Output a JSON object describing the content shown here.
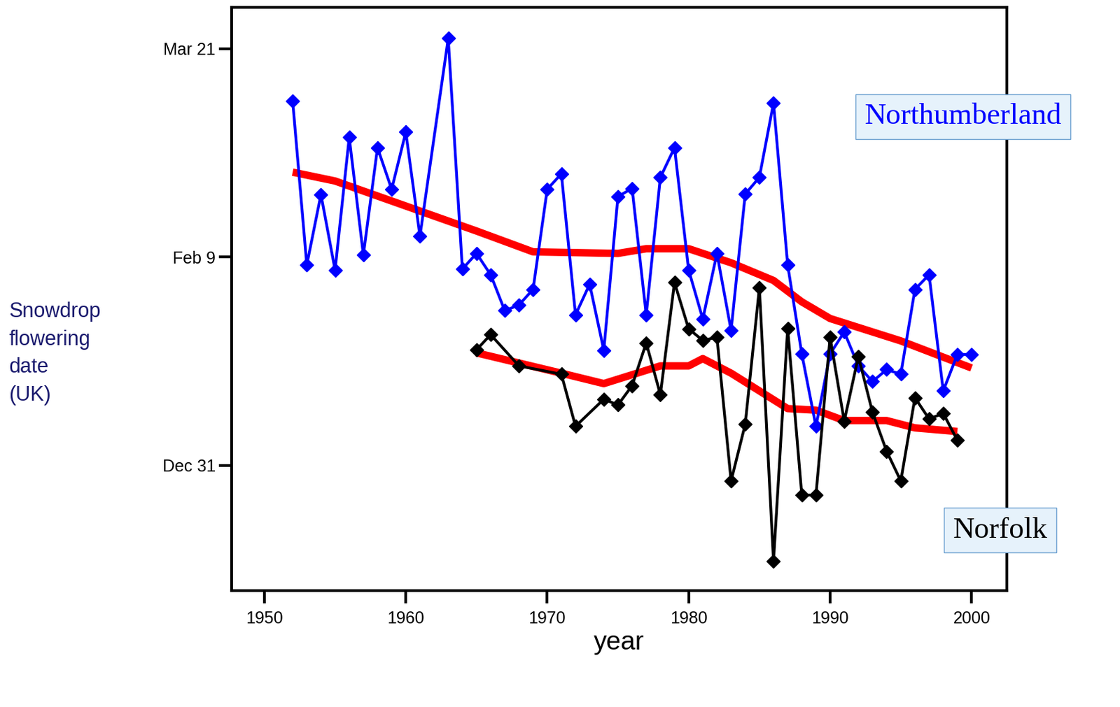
{
  "chart_data": {
    "type": "line",
    "y_label": "Snowdrop flowering date (UK)",
    "x_label": "year",
    "xlim": [
      1947.7,
      2002.5
    ],
    "xticks": [
      1950,
      1960,
      1970,
      1980,
      1990,
      2000
    ],
    "ylim": [
      -24,
      88
    ],
    "yticks": [
      {
        "value": 0,
        "label": "Dec 31"
      },
      {
        "value": 40,
        "label": "Feb 9"
      },
      {
        "value": 80,
        "label": "Mar 21"
      }
    ],
    "grid": false,
    "series": [
      {
        "name": "Northumberland",
        "color": "#0000ff",
        "marker": "diamond",
        "line_style": "solid",
        "x": [
          1952,
          1953,
          1954,
          1955,
          1956,
          1957,
          1958,
          1959,
          1960,
          1961,
          1963,
          1964,
          1965,
          1966,
          1967,
          1968,
          1969,
          1970,
          1971,
          1972,
          1973,
          1974,
          1975,
          1976,
          1977,
          1978,
          1979,
          1980,
          1981,
          1982,
          1983,
          1984,
          1985,
          1986,
          1987,
          1988,
          1989,
          1990,
          1991,
          1992,
          1993,
          1994,
          1995,
          1996,
          1997,
          1998,
          1999,
          2000
        ],
        "values": [
          70,
          38.5,
          52,
          37.5,
          63,
          40.4,
          61,
          53,
          64,
          44,
          82,
          37.7,
          40.7,
          36.6,
          29.7,
          30.8,
          33.8,
          53,
          56,
          28.9,
          34.8,
          22.1,
          51.6,
          53.2,
          28.9,
          55.3,
          61,
          37.5,
          28.1,
          40.7,
          25.9,
          52.1,
          55.3,
          69.6,
          38.5,
          21.4,
          7.5,
          21.4,
          25.6,
          19.1,
          16.1,
          18.4,
          17.5,
          33.8,
          36.6,
          14.3,
          21.3,
          21.3
        ]
      },
      {
        "name": "Norfolk",
        "color": "#000000",
        "marker": "diamond",
        "line_style": "solid",
        "x": [
          1965,
          1966,
          1968,
          1971,
          1972,
          1974,
          1975,
          1976,
          1977,
          1978,
          1979,
          1980,
          1981,
          1982,
          1983,
          1984,
          1985,
          1986,
          1987,
          1988,
          1989,
          1990,
          1991,
          1992,
          1993,
          1994,
          1995,
          1996,
          1997,
          1998,
          1999
        ],
        "values": [
          22.2,
          25.1,
          19.1,
          17.5,
          7.5,
          12.7,
          11.6,
          15.3,
          23.5,
          13.6,
          35.1,
          26.2,
          24,
          24.6,
          -3,
          7.9,
          34.1,
          -18.4,
          26.3,
          -5.7,
          -5.7,
          24.6,
          8.5,
          20.9,
          10.2,
          2.7,
          -3,
          13,
          8.9,
          10,
          4.8
        ]
      },
      {
        "color": "#ff0000",
        "marker": "none",
        "line_style": "solid",
        "x": [
          1952,
          1955,
          1960,
          1965,
          1969,
          1975,
          1977,
          1980,
          1983,
          1986,
          1988,
          1990,
          1995,
          2000
        ],
        "values": [
          56.3,
          54.6,
          49.8,
          45,
          41,
          40.7,
          41.6,
          41.6,
          38.9,
          35.5,
          31.4,
          28.2,
          23.9,
          18.7
        ]
      },
      {
        "color": "#ff0000",
        "marker": "none",
        "line_style": "solid",
        "x": [
          1965,
          1971,
          1974,
          1978,
          1980,
          1981,
          1983,
          1986,
          1987,
          1989,
          1991,
          1994,
          1996,
          1999
        ],
        "values": [
          21.6,
          17.7,
          15.7,
          19.1,
          19.1,
          20.5,
          17.7,
          12.6,
          10.9,
          10.6,
          8.6,
          8.6,
          7.2,
          6.5
        ]
      }
    ]
  }
}
